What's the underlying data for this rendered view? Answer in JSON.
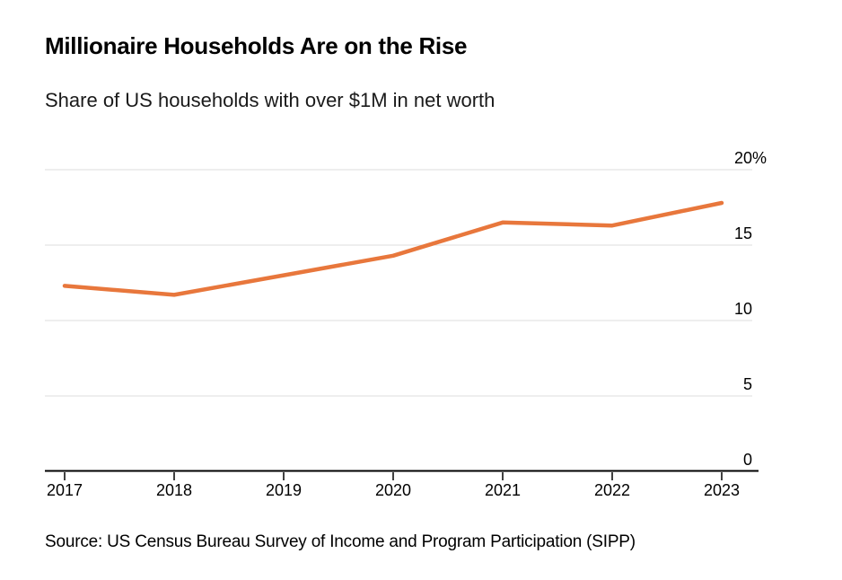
{
  "header": {
    "title": "Millionaire Households Are on the Rise",
    "subtitle": "Share of US households with over $1M in net worth"
  },
  "footer": {
    "source": "Source: US Census Bureau Survey of Income and Program Participation (SIPP)"
  },
  "colors": {
    "line": "#E8773C",
    "gridline": "#DCDCDC",
    "axis": "#000000",
    "label": "#000000",
    "background": "#FFFFFF"
  },
  "chart_data": {
    "type": "line",
    "title": "Millionaire Households Are on the Rise",
    "subtitle": "Share of US households with over $1M in net worth",
    "x": [
      "2017",
      "2018",
      "2019",
      "2020",
      "2021",
      "2022",
      "2023"
    ],
    "series": [
      {
        "name": "Share of US households with over $1M in net worth",
        "values": [
          12.3,
          11.7,
          13.0,
          14.3,
          16.5,
          16.3,
          17.8
        ]
      }
    ],
    "xlabel": "",
    "ylabel": "",
    "ylim": [
      0,
      20
    ],
    "yticks": [
      0,
      5,
      10,
      15,
      20
    ],
    "ytick_labels": [
      "0",
      "5",
      "10",
      "15",
      "20%"
    ],
    "y_axis_side": "right",
    "grid": true,
    "legend_visible": false
  }
}
